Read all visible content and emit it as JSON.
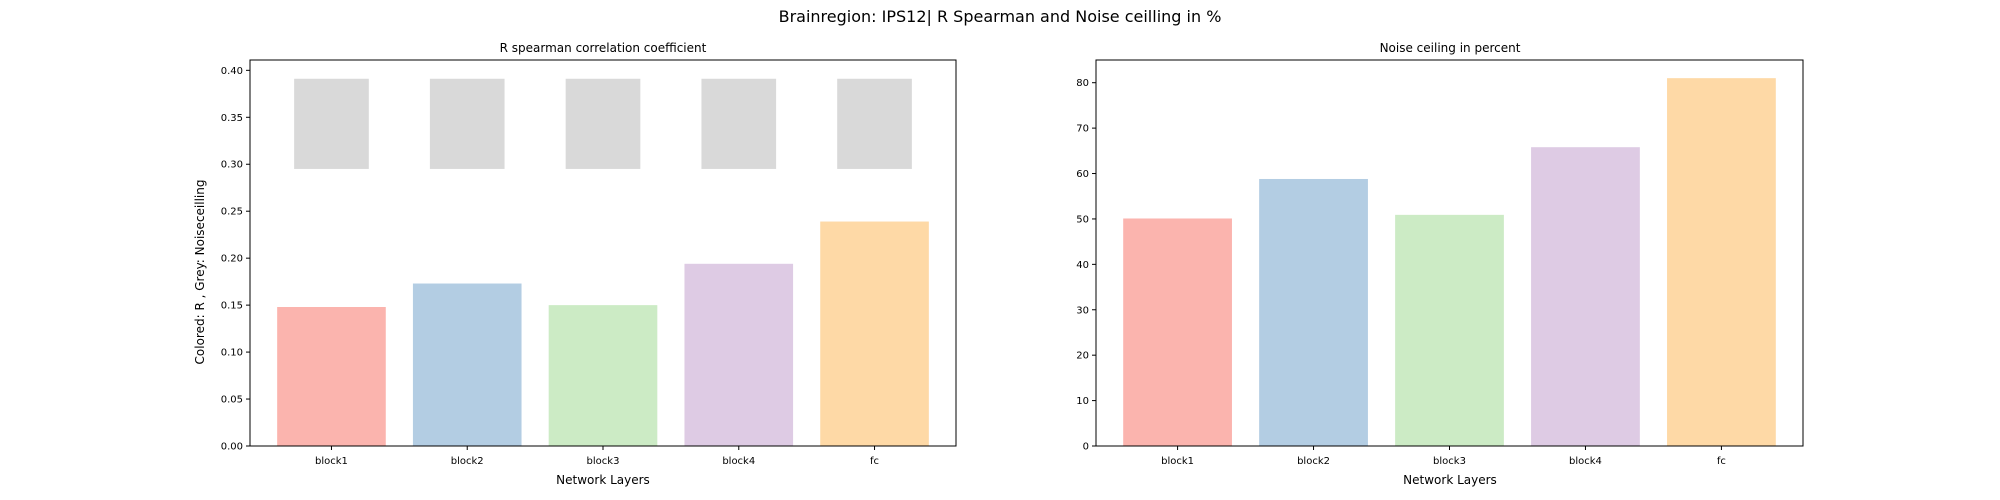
{
  "suptitle": "Brainregion: IPS12| R Spearman and Noise ceilling in %",
  "chart_data": [
    {
      "type": "bar",
      "title": "R spearman correlation coefficient",
      "xlabel": "Network Layers",
      "ylabel": "Colored: R , Grey: Noiseceilling",
      "categories": [
        "block1",
        "block2",
        "block3",
        "block4",
        "fc"
      ],
      "series": [
        {
          "values": [
            0.148,
            0.173,
            0.15,
            0.194,
            0.239
          ],
          "colors": [
            "#fbb4ae",
            "#b3cde3",
            "#ccebc5",
            "#decbe4",
            "#fed9a6"
          ]
        }
      ],
      "noise_ceiling": {
        "lower": [
          0.295,
          0.295,
          0.295,
          0.295,
          0.295
        ],
        "upper": [
          0.391,
          0.391,
          0.391,
          0.391,
          0.391
        ],
        "color": "#d9d9d9"
      },
      "ylim": [
        0,
        0.411
      ],
      "yticks": [
        "0.00",
        "0.05",
        "0.10",
        "0.15",
        "0.20",
        "0.25",
        "0.30",
        "0.35",
        "0.40"
      ],
      "ytick_values": [
        0,
        0.05,
        0.1,
        0.15,
        0.2,
        0.25,
        0.3,
        0.35,
        0.4
      ],
      "grid": false
    },
    {
      "type": "bar",
      "title": "Noise ceiling in percent",
      "xlabel": "Network Layers",
      "ylabel": "",
      "categories": [
        "block1",
        "block2",
        "block3",
        "block4",
        "fc"
      ],
      "series": [
        {
          "values": [
            50.1,
            58.8,
            50.9,
            65.8,
            81.0
          ],
          "colors": [
            "#fbb4ae",
            "#b3cde3",
            "#ccebc5",
            "#decbe4",
            "#fed9a6"
          ]
        }
      ],
      "ylim": [
        0,
        85
      ],
      "yticks": [
        "0",
        "10",
        "20",
        "30",
        "40",
        "50",
        "60",
        "70",
        "80"
      ],
      "ytick_values": [
        0,
        10,
        20,
        30,
        40,
        50,
        60,
        70,
        80
      ],
      "grid": false
    }
  ]
}
